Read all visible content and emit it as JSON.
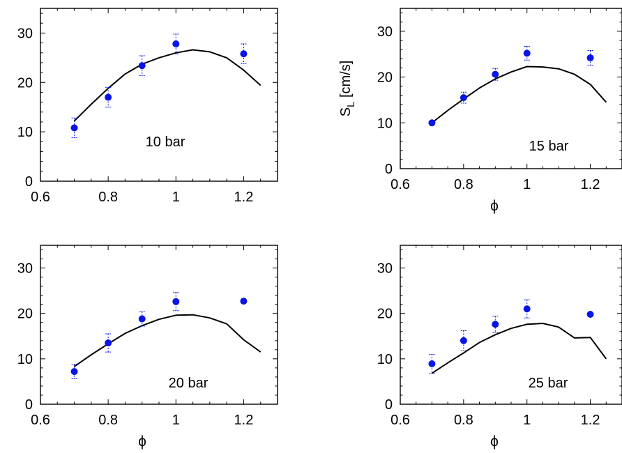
{
  "colors": {
    "data": "#0a14e6",
    "model": "#000000",
    "axes": "#000000"
  },
  "chart_data": [
    {
      "type": "line",
      "annotation": "10 bar",
      "xlabel": "",
      "ylabel": "",
      "xlim": [
        0.6,
        1.3
      ],
      "ylim": [
        0,
        35
      ],
      "xticks": [
        "0.6",
        "0.8",
        "1",
        "1.2"
      ],
      "yticks": [
        "0",
        "10",
        "20",
        "30"
      ],
      "series": [
        {
          "kind": "points_errorbars",
          "x": [
            0.7,
            0.8,
            0.9,
            1.0,
            1.2
          ],
          "y": [
            10.8,
            17.0,
            23.4,
            27.8,
            25.8
          ],
          "err": [
            2.0,
            2.0,
            2.0,
            2.0,
            2.0
          ]
        },
        {
          "kind": "curve",
          "x": [
            0.7,
            0.75,
            0.8,
            0.85,
            0.9,
            0.95,
            1.0,
            1.05,
            1.1,
            1.15,
            1.2,
            1.25
          ],
          "y": [
            12.2,
            15.6,
            18.8,
            21.7,
            23.7,
            25.0,
            26.0,
            26.6,
            26.2,
            25.0,
            22.5,
            19.4
          ]
        }
      ]
    },
    {
      "type": "line",
      "annotation": "15 bar",
      "xlabel": "ϕ",
      "ylabel": "S_L [cm/s]",
      "xlim": [
        0.6,
        1.3
      ],
      "ylim": [
        0,
        35
      ],
      "xticks": [
        "0.6",
        "0.8",
        "1",
        "1.2"
      ],
      "yticks": [
        "0",
        "10",
        "20",
        "30"
      ],
      "series": [
        {
          "kind": "points_errorbars",
          "x": [
            0.7,
            0.8,
            0.9,
            1.0,
            1.2
          ],
          "y": [
            10.0,
            15.5,
            20.6,
            25.2,
            24.2
          ],
          "err": [
            0.3,
            1.2,
            1.3,
            1.5,
            1.6
          ]
        },
        {
          "kind": "curve",
          "x": [
            0.7,
            0.75,
            0.8,
            0.85,
            0.9,
            0.95,
            1.0,
            1.05,
            1.1,
            1.15,
            1.2,
            1.25
          ],
          "y": [
            10.0,
            12.7,
            15.2,
            17.6,
            19.6,
            21.1,
            22.3,
            22.2,
            21.8,
            20.6,
            18.4,
            14.5
          ]
        }
      ]
    },
    {
      "type": "line",
      "annotation": "20 bar",
      "xlabel": "ϕ",
      "ylabel": "",
      "xlim": [
        0.6,
        1.3
      ],
      "ylim": [
        0,
        35
      ],
      "xticks": [
        "0.6",
        "0.8",
        "1",
        "1.2"
      ],
      "yticks": [
        "0",
        "10",
        "20",
        "30"
      ],
      "series": [
        {
          "kind": "points_errorbars",
          "x": [
            0.7,
            0.8,
            0.9,
            1.0,
            1.2
          ],
          "y": [
            7.2,
            13.5,
            18.8,
            22.6,
            22.7
          ],
          "err": [
            1.6,
            2.0,
            1.6,
            2.0,
            0.3
          ]
        },
        {
          "kind": "curve",
          "x": [
            0.7,
            0.75,
            0.8,
            0.85,
            0.9,
            0.95,
            1.0,
            1.05,
            1.1,
            1.15,
            1.2,
            1.25
          ],
          "y": [
            8.3,
            10.9,
            13.3,
            15.6,
            17.3,
            18.7,
            19.6,
            19.7,
            19.0,
            17.7,
            14.2,
            11.5
          ]
        }
      ]
    },
    {
      "type": "line",
      "annotation": "25 bar",
      "xlabel": "ϕ",
      "ylabel": "",
      "xlim": [
        0.6,
        1.3
      ],
      "ylim": [
        0,
        35
      ],
      "xticks": [
        "0.6",
        "0.8",
        "1",
        "1.2"
      ],
      "yticks": [
        "0",
        "10",
        "20",
        "30"
      ],
      "series": [
        {
          "kind": "points_errorbars",
          "x": [
            0.7,
            0.8,
            0.9,
            1.0,
            1.2
          ],
          "y": [
            8.9,
            14.0,
            17.6,
            21.0,
            19.8
          ],
          "err": [
            2.1,
            2.2,
            1.8,
            2.0,
            0.3
          ]
        },
        {
          "kind": "curve",
          "x": [
            0.7,
            0.75,
            0.8,
            0.85,
            0.9,
            0.95,
            1.0,
            1.05,
            1.1,
            1.15,
            1.2,
            1.25
          ],
          "y": [
            6.8,
            9.1,
            11.3,
            13.6,
            15.3,
            16.7,
            17.6,
            17.8,
            17.0,
            14.6,
            14.7,
            10.0
          ]
        }
      ]
    }
  ]
}
